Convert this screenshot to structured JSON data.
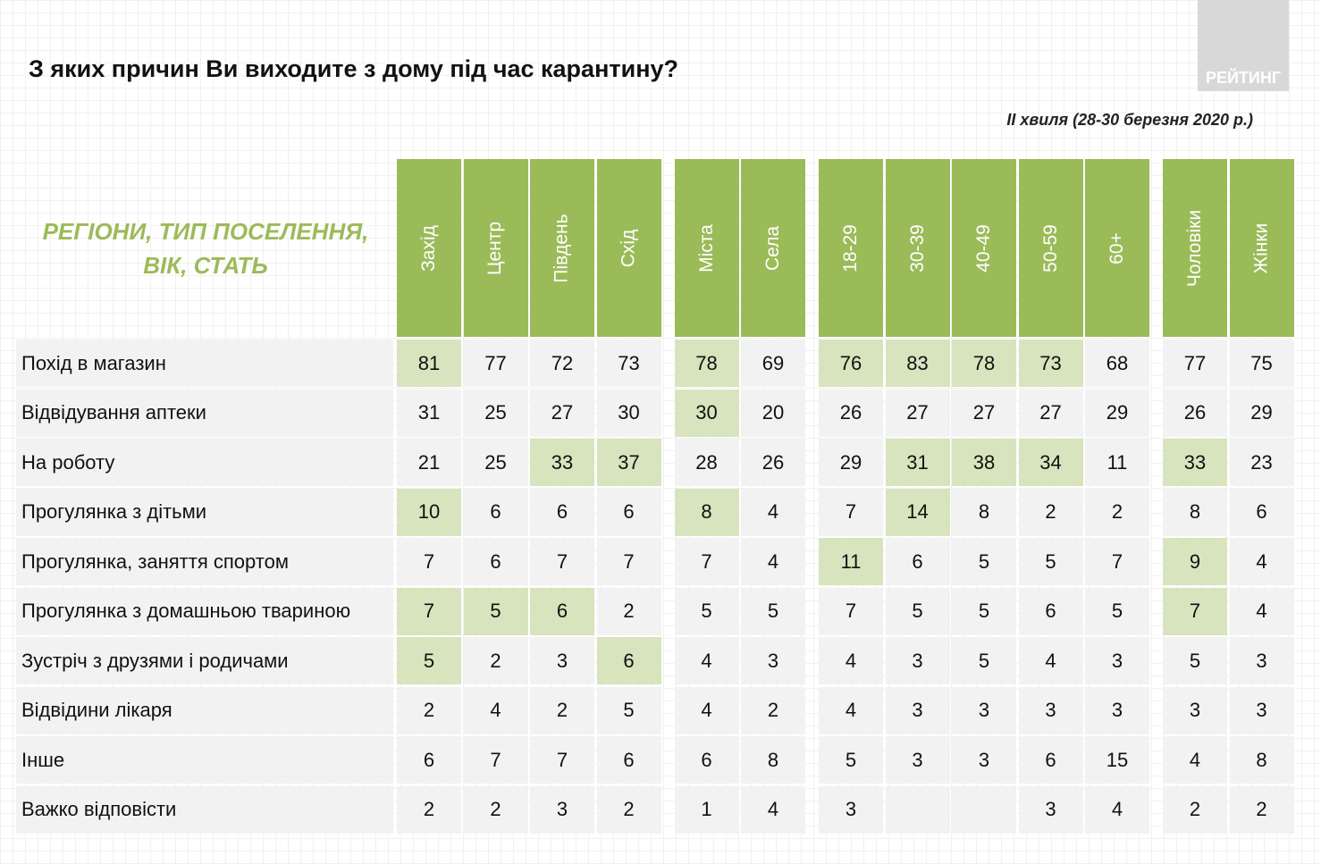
{
  "title": "З яких причин Ви виходите з дому під час карантину?",
  "logo": "РЕЙТИНГ",
  "subtitle": "ІІ хвиля (28-30 березня 2020 р.)",
  "header_label": "РЕГІОНИ, ТИП ПОСЕЛЕННЯ, ВІК, СТАТЬ",
  "column_groups": [
    [
      "Захід",
      "Центр",
      "Південь",
      "Схід"
    ],
    [
      "Міста",
      "Села"
    ],
    [
      "18-29",
      "30-39",
      "40-49",
      "50-59",
      "60+"
    ],
    [
      "Чоловіки",
      "Жінки"
    ]
  ],
  "rows": [
    {
      "label": "Похід в магазин",
      "values": [
        81,
        77,
        72,
        73,
        78,
        69,
        76,
        83,
        78,
        73,
        68,
        77,
        75
      ],
      "highlight": [
        0,
        4,
        6,
        7,
        8,
        9
      ]
    },
    {
      "label": "Відвідування аптеки",
      "values": [
        31,
        25,
        27,
        30,
        30,
        20,
        26,
        27,
        27,
        27,
        29,
        26,
        29
      ],
      "highlight": [
        4
      ]
    },
    {
      "label": "На роботу",
      "values": [
        21,
        25,
        33,
        37,
        28,
        26,
        29,
        31,
        38,
        34,
        11,
        33,
        23
      ],
      "highlight": [
        2,
        3,
        7,
        8,
        9,
        11
      ]
    },
    {
      "label": "Прогулянка з дітьми",
      "values": [
        10,
        6,
        6,
        6,
        8,
        4,
        7,
        14,
        8,
        2,
        2,
        8,
        6
      ],
      "highlight": [
        0,
        4,
        7
      ]
    },
    {
      "label": "Прогулянка, заняття спортом",
      "values": [
        7,
        6,
        7,
        7,
        7,
        4,
        11,
        6,
        5,
        5,
        7,
        9,
        4
      ],
      "highlight": [
        6,
        11
      ]
    },
    {
      "label": "Прогулянка з домашньою твариною",
      "values": [
        7,
        5,
        6,
        2,
        5,
        5,
        7,
        5,
        5,
        6,
        5,
        7,
        4
      ],
      "highlight": [
        0,
        1,
        2,
        11
      ]
    },
    {
      "label": "Зустріч з друзями і родичами",
      "values": [
        5,
        2,
        3,
        6,
        4,
        3,
        4,
        3,
        5,
        4,
        3,
        5,
        3
      ],
      "highlight": [
        0,
        3
      ]
    },
    {
      "label": "Відвідини лікаря",
      "values": [
        2,
        4,
        2,
        5,
        4,
        2,
        4,
        3,
        3,
        3,
        3,
        3,
        3
      ],
      "highlight": []
    },
    {
      "label": "Інше",
      "values": [
        6,
        7,
        7,
        6,
        6,
        8,
        5,
        3,
        3,
        6,
        15,
        4,
        8
      ],
      "highlight": []
    },
    {
      "label": "Важко відповісти",
      "values": [
        2,
        2,
        3,
        2,
        1,
        4,
        3,
        null,
        null,
        3,
        4,
        2,
        2
      ],
      "highlight": []
    }
  ]
}
